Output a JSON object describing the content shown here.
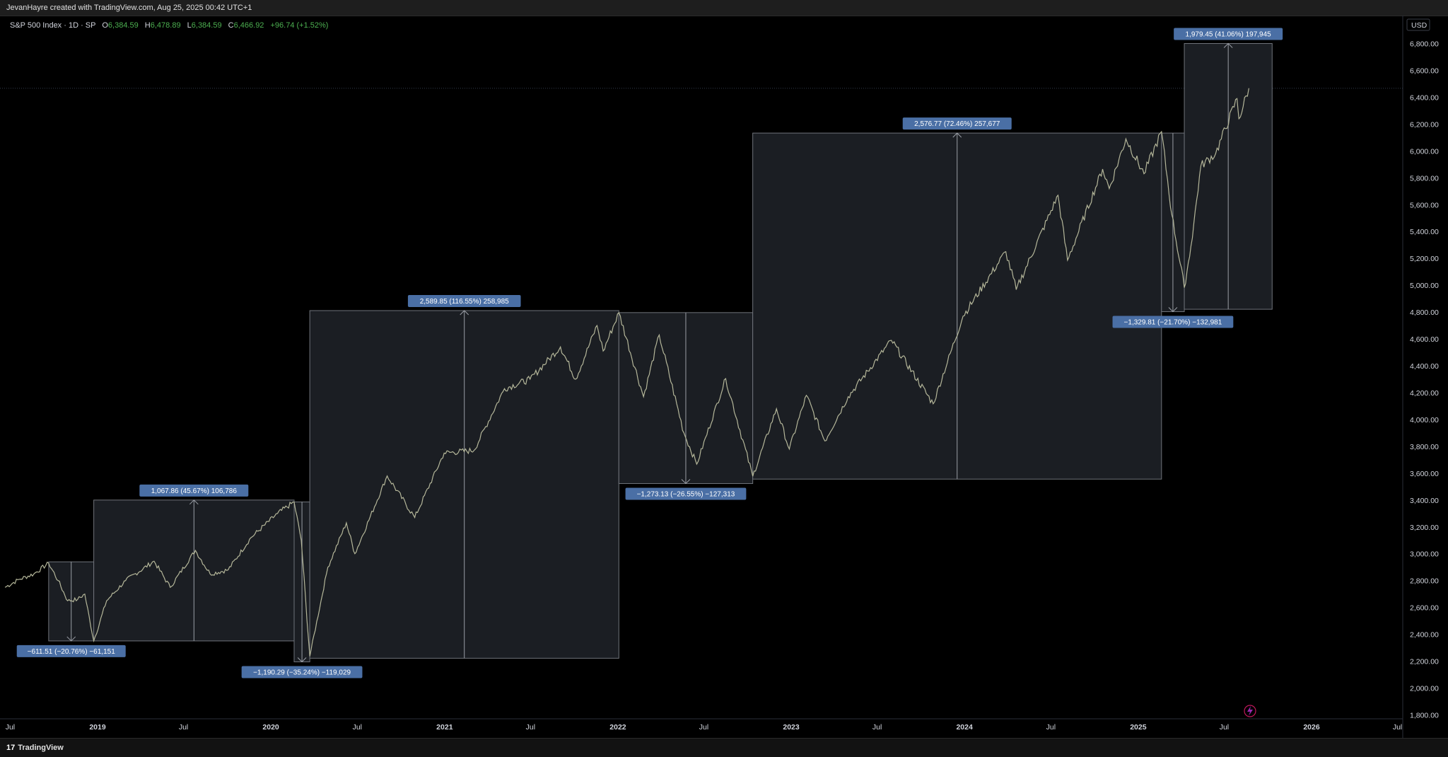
{
  "header": {
    "attribution": "JevanHayre created with TradingView.com, Aug 25, 2025 00:42 UTC+1"
  },
  "legend": {
    "symbol": "S&P 500 Index · 1D · SP",
    "open_label": "O",
    "open": "6,384.59",
    "high_label": "H",
    "high": "6,478.89",
    "low_label": "L",
    "low": "6,384.59",
    "close_label": "C",
    "close": "6,466.92",
    "change": "+96.74 (+1.52%)"
  },
  "footer": {
    "brand": "TradingView",
    "brand_mark": "17"
  },
  "colors": {
    "background": "#000000",
    "box_fill": "#1b1e23",
    "box_border": "#6f737a",
    "label_bg": "#4a6fa5",
    "price_line": "#b5b79a",
    "up": "#4caf50"
  },
  "chart_data": {
    "type": "line",
    "title": "S&P 500 Index · 1D · SP",
    "currency": "USD",
    "ylim": [
      1700,
      6950
    ],
    "y_ticks": [
      "6,800.00",
      "6,600.00",
      "6,400.00",
      "6,200.00",
      "6,000.00",
      "5,800.00",
      "5,600.00",
      "5,400.00",
      "5,200.00",
      "5,000.00",
      "4,800.00",
      "4,600.00",
      "4,400.00",
      "4,200.00",
      "4,000.00",
      "3,800.00",
      "3,600.00",
      "3,400.00",
      "3,200.00",
      "3,000.00",
      "2,800.00",
      "2,600.00",
      "2,400.00",
      "2,200.00",
      "2,000.00",
      "1,800.00"
    ],
    "x_ticks": [
      {
        "label": "Jul",
        "t": "2018-07"
      },
      {
        "label": "2019",
        "t": "2019-01"
      },
      {
        "label": "Jul",
        "t": "2019-07"
      },
      {
        "label": "2020",
        "t": "2020-01"
      },
      {
        "label": "Jul",
        "t": "2020-07"
      },
      {
        "label": "2021",
        "t": "2021-01"
      },
      {
        "label": "Jul",
        "t": "2021-07"
      },
      {
        "label": "2022",
        "t": "2022-01"
      },
      {
        "label": "Jul",
        "t": "2022-07"
      },
      {
        "label": "2023",
        "t": "2023-01"
      },
      {
        "label": "Jul",
        "t": "2023-07"
      },
      {
        "label": "2024",
        "t": "2024-01"
      },
      {
        "label": "Jul",
        "t": "2024-07"
      },
      {
        "label": "2025",
        "t": "2025-01"
      },
      {
        "label": "Jul",
        "t": "2025-07"
      },
      {
        "label": "2026",
        "t": "2026-01"
      },
      {
        "label": "Jul",
        "t": "2026-07"
      }
    ],
    "series": [
      {
        "points": [
          [
            "2018-06-20",
            2750
          ],
          [
            "2018-07-20",
            2810
          ],
          [
            "2018-08-20",
            2850
          ],
          [
            "2018-09-20",
            2930
          ],
          [
            "2018-10-10",
            2800
          ],
          [
            "2018-10-30",
            2650
          ],
          [
            "2018-11-20",
            2660
          ],
          [
            "2018-12-05",
            2700
          ],
          [
            "2018-12-24",
            2351
          ],
          [
            "2019-01-20",
            2650
          ],
          [
            "2019-03-01",
            2800
          ],
          [
            "2019-04-30",
            2945
          ],
          [
            "2019-06-03",
            2750
          ],
          [
            "2019-07-26",
            3025
          ],
          [
            "2019-08-26",
            2850
          ],
          [
            "2019-10-03",
            2880
          ],
          [
            "2019-11-20",
            3120
          ],
          [
            "2020-01-15",
            3300
          ],
          [
            "2020-02-19",
            3386
          ],
          [
            "2020-03-05",
            3100
          ],
          [
            "2020-03-23",
            2237
          ],
          [
            "2020-04-30",
            2900
          ],
          [
            "2020-06-08",
            3230
          ],
          [
            "2020-06-26",
            3000
          ],
          [
            "2020-09-02",
            3580
          ],
          [
            "2020-10-30",
            3270
          ],
          [
            "2020-12-31",
            3750
          ],
          [
            "2021-03-04",
            3770
          ],
          [
            "2021-05-07",
            4230
          ],
          [
            "2021-06-30",
            4300
          ],
          [
            "2021-09-02",
            4540
          ],
          [
            "2021-10-04",
            4300
          ],
          [
            "2021-11-18",
            4700
          ],
          [
            "2021-12-01",
            4510
          ],
          [
            "2022-01-03",
            4796
          ],
          [
            "2022-02-24",
            4170
          ],
          [
            "2022-03-29",
            4630
          ],
          [
            "2022-05-20",
            3900
          ],
          [
            "2022-06-16",
            3667
          ],
          [
            "2022-08-16",
            4305
          ],
          [
            "2022-10-12",
            3577
          ],
          [
            "2022-12-01",
            4080
          ],
          [
            "2022-12-28",
            3780
          ],
          [
            "2023-02-02",
            4180
          ],
          [
            "2023-03-13",
            3840
          ],
          [
            "2023-05-01",
            4170
          ],
          [
            "2023-07-31",
            4590
          ],
          [
            "2023-10-27",
            4117
          ],
          [
            "2023-12-29",
            4770
          ],
          [
            "2024-03-28",
            5250
          ],
          [
            "2024-04-19",
            4967
          ],
          [
            "2024-07-16",
            5670
          ],
          [
            "2024-08-05",
            5186
          ],
          [
            "2024-10-18",
            5865
          ],
          [
            "2024-11-01",
            5720
          ],
          [
            "2024-12-06",
            6090
          ],
          [
            "2025-01-13",
            5830
          ],
          [
            "2025-02-19",
            6144
          ],
          [
            "2025-03-13",
            5520
          ],
          [
            "2025-04-08",
            4982
          ],
          [
            "2025-04-22",
            5290
          ],
          [
            "2025-05-13",
            5890
          ],
          [
            "2025-06-13",
            5980
          ],
          [
            "2025-07-28",
            6390
          ],
          [
            "2025-08-01",
            6240
          ],
          [
            "2025-08-22",
            6467
          ]
        ]
      }
    ],
    "measurements": [
      {
        "label": "−611.51 (−20.76%) −61,151",
        "from": "2018-09-20",
        "to": "2018-12-24",
        "start": 2940,
        "end": 2351
      },
      {
        "label": "1,067.86 (45.67%) 106,786",
        "from": "2018-12-24",
        "to": "2020-02-19",
        "start": 2351,
        "end": 3400
      },
      {
        "label": "−1,190.29 (−35.24%) −119,029",
        "from": "2020-02-19",
        "to": "2020-03-23",
        "start": 3386,
        "end": 2195
      },
      {
        "label": "2,589.85 (116.55%) 258,985",
        "from": "2020-03-23",
        "to": "2022-01-03",
        "start": 2222,
        "end": 4811
      },
      {
        "label": "−1,273.13 (−26.55%) −127,313",
        "from": "2022-01-03",
        "to": "2022-10-12",
        "start": 4796,
        "end": 3523
      },
      {
        "label": "2,576.77 (72.46%) 257,677",
        "from": "2022-10-12",
        "to": "2025-02-19",
        "start": 3556,
        "end": 6133
      },
      {
        "label": "−1,329.81 (−21.70%) −132,981",
        "from": "2025-02-19",
        "to": "2025-04-08",
        "start": 6133,
        "end": 4803
      },
      {
        "label": "1,979.45 (41.06%) 197,945",
        "from": "2025-04-08",
        "to": "2025-10-10",
        "start": 4821,
        "end": 6800
      }
    ]
  }
}
